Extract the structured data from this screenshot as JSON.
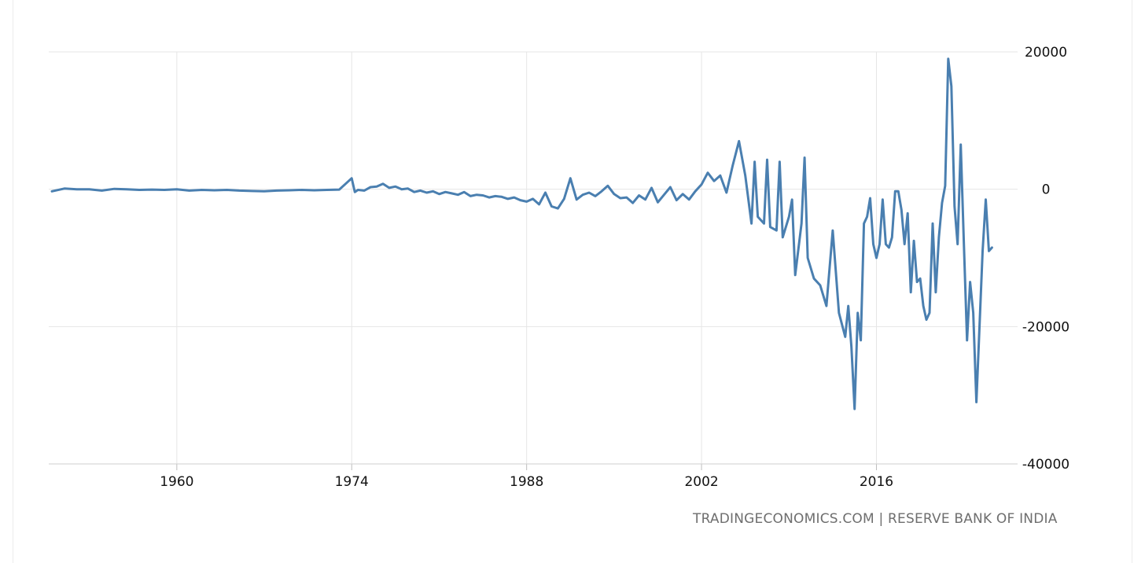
{
  "source": "TRADINGECONOMICS.COM | RESERVE BANK OF INDIA",
  "chart_data": {
    "type": "line",
    "title": "",
    "xlabel": "",
    "ylabel": "",
    "xlim": [
      1949.75,
      2027.3
    ],
    "ylim": [
      -40000,
      20000
    ],
    "x_ticks": [
      1960,
      1974,
      1988,
      2002,
      2016
    ],
    "y_ticks": [
      20000,
      0,
      -20000,
      -40000
    ],
    "y_axis_position": "right",
    "grid": true,
    "legend": "none",
    "colors": {
      "line": "#4a7fb0",
      "grid": "#e6e6e6"
    },
    "series": [
      {
        "values": [
          [
            1950,
            -300
          ],
          [
            1951,
            100
          ],
          [
            1952,
            0
          ],
          [
            1953,
            0
          ],
          [
            1954,
            -200
          ],
          [
            1955,
            50
          ],
          [
            1956,
            0
          ],
          [
            1957,
            -100
          ],
          [
            1958,
            -50
          ],
          [
            1959,
            -100
          ],
          [
            1960,
            0
          ],
          [
            1961,
            -200
          ],
          [
            1962,
            -100
          ],
          [
            1963,
            -150
          ],
          [
            1964,
            -100
          ],
          [
            1965,
            -200
          ],
          [
            1966,
            -250
          ],
          [
            1967,
            -300
          ],
          [
            1968,
            -200
          ],
          [
            1969,
            -150
          ],
          [
            1970,
            -100
          ],
          [
            1971,
            -150
          ],
          [
            1972,
            -100
          ],
          [
            1973,
            -50
          ],
          [
            1974,
            1600
          ],
          [
            1974.25,
            -400
          ],
          [
            1974.5,
            -100
          ],
          [
            1975,
            -200
          ],
          [
            1975.5,
            300
          ],
          [
            1976,
            400
          ],
          [
            1976.5,
            800
          ],
          [
            1977,
            200
          ],
          [
            1977.5,
            400
          ],
          [
            1978,
            0
          ],
          [
            1978.5,
            100
          ],
          [
            1979,
            -400
          ],
          [
            1979.5,
            -200
          ],
          [
            1980,
            -500
          ],
          [
            1980.5,
            -300
          ],
          [
            1981,
            -700
          ],
          [
            1981.5,
            -400
          ],
          [
            1982,
            -600
          ],
          [
            1982.5,
            -800
          ],
          [
            1983,
            -400
          ],
          [
            1983.5,
            -1000
          ],
          [
            1984,
            -800
          ],
          [
            1984.5,
            -900
          ],
          [
            1985,
            -1200
          ],
          [
            1985.5,
            -1000
          ],
          [
            1986,
            -1100
          ],
          [
            1986.5,
            -1400
          ],
          [
            1987,
            -1200
          ],
          [
            1987.5,
            -1600
          ],
          [
            1988,
            -1800
          ],
          [
            1988.5,
            -1400
          ],
          [
            1989,
            -2200
          ],
          [
            1989.5,
            -500
          ],
          [
            1990,
            -2500
          ],
          [
            1990.5,
            -2800
          ],
          [
            1991,
            -1400
          ],
          [
            1991.5,
            1600
          ],
          [
            1992,
            -1500
          ],
          [
            1992.5,
            -800
          ],
          [
            1993,
            -500
          ],
          [
            1993.5,
            -1000
          ],
          [
            1994,
            -300
          ],
          [
            1994.5,
            500
          ],
          [
            1995,
            -700
          ],
          [
            1995.5,
            -1300
          ],
          [
            1996,
            -1200
          ],
          [
            1996.5,
            -2000
          ],
          [
            1997,
            -900
          ],
          [
            1997.5,
            -1500
          ],
          [
            1998,
            200
          ],
          [
            1998.5,
            -1900
          ],
          [
            1999,
            -800
          ],
          [
            1999.5,
            300
          ],
          [
            2000,
            -1600
          ],
          [
            2000.5,
            -700
          ],
          [
            2001,
            -1500
          ],
          [
            2001.5,
            -300
          ],
          [
            2002,
            700
          ],
          [
            2002.5,
            2400
          ],
          [
            2003,
            1200
          ],
          [
            2003.5,
            2000
          ],
          [
            2004,
            -500
          ],
          [
            2004.5,
            3500
          ],
          [
            2005,
            7000
          ],
          [
            2005.5,
            2000
          ],
          [
            2006,
            -5000
          ],
          [
            2006.25,
            4000
          ],
          [
            2006.5,
            -4000
          ],
          [
            2007,
            -5000
          ],
          [
            2007.25,
            4300
          ],
          [
            2007.5,
            -5500
          ],
          [
            2008,
            -6000
          ],
          [
            2008.25,
            4000
          ],
          [
            2008.5,
            -7000
          ],
          [
            2009,
            -4000
          ],
          [
            2009.25,
            -1500
          ],
          [
            2009.5,
            -12500
          ],
          [
            2010,
            -5000
          ],
          [
            2010.25,
            4600
          ],
          [
            2010.5,
            -10000
          ],
          [
            2011,
            -13000
          ],
          [
            2011.5,
            -14000
          ],
          [
            2012,
            -17000
          ],
          [
            2012.5,
            -6000
          ],
          [
            2013,
            -18000
          ],
          [
            2013.5,
            -21500
          ],
          [
            2013.75,
            -17000
          ],
          [
            2014,
            -23000
          ],
          [
            2014.25,
            -32000
          ],
          [
            2014.5,
            -18000
          ],
          [
            2014.75,
            -22000
          ],
          [
            2015,
            -5000
          ],
          [
            2015.25,
            -4000
          ],
          [
            2015.5,
            -1300
          ],
          [
            2015.75,
            -8000
          ],
          [
            2016,
            -10000
          ],
          [
            2016.25,
            -8000
          ],
          [
            2016.5,
            -1500
          ],
          [
            2016.75,
            -8000
          ],
          [
            2017,
            -8500
          ],
          [
            2017.25,
            -7000
          ],
          [
            2017.5,
            -300
          ],
          [
            2017.75,
            -300
          ],
          [
            2018,
            -3000
          ],
          [
            2018.25,
            -8000
          ],
          [
            2018.5,
            -3500
          ],
          [
            2018.75,
            -15000
          ],
          [
            2019,
            -7500
          ],
          [
            2019.25,
            -13500
          ],
          [
            2019.5,
            -13000
          ],
          [
            2019.75,
            -17000
          ],
          [
            2020,
            -19000
          ],
          [
            2020.25,
            -18000
          ],
          [
            2020.5,
            -5000
          ],
          [
            2020.75,
            -15000
          ],
          [
            2021,
            -7000
          ],
          [
            2021.25,
            -2000
          ],
          [
            2021.5,
            500
          ],
          [
            2021.75,
            19000
          ],
          [
            2022,
            15000
          ],
          [
            2022.25,
            -2500
          ],
          [
            2022.5,
            -8000
          ],
          [
            2022.75,
            6500
          ],
          [
            2023,
            -8000
          ],
          [
            2023.25,
            -22000
          ],
          [
            2023.5,
            -13500
          ],
          [
            2023.75,
            -18000
          ],
          [
            2024,
            -31000
          ],
          [
            2024.5,
            -9000
          ],
          [
            2024.75,
            -1500
          ],
          [
            2025,
            -9000
          ],
          [
            2025.25,
            -8500
          ]
        ]
      }
    ]
  }
}
